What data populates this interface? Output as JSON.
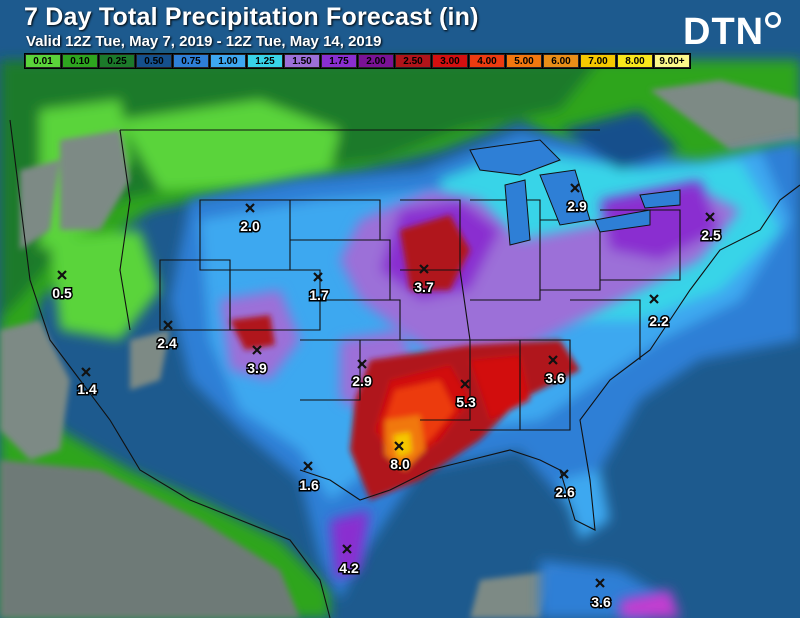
{
  "title": "7 Day Total Precipitation Forecast (in)",
  "subtitle": "Valid 12Z Tue, May 7, 2019 - 12Z Tue, May 14, 2019",
  "brand": "DTN",
  "legend": [
    {
      "label": "0.01",
      "color": "#5ad43a"
    },
    {
      "label": "0.10",
      "color": "#2ea51f"
    },
    {
      "label": "0.25",
      "color": "#1c7a2a"
    },
    {
      "label": "0.50",
      "color": "#15508c"
    },
    {
      "label": "0.75",
      "color": "#2e7fd6"
    },
    {
      "label": "1.00",
      "color": "#3ea8f0"
    },
    {
      "label": "1.25",
      "color": "#38d4e8"
    },
    {
      "label": "1.50",
      "color": "#9c6fd8"
    },
    {
      "label": "1.75",
      "color": "#8a2fd0"
    },
    {
      "label": "2.00",
      "color": "#7a1296"
    },
    {
      "label": "2.50",
      "color": "#b0141a"
    },
    {
      "label": "3.00",
      "color": "#d21010"
    },
    {
      "label": "4.00",
      "color": "#ec3b10"
    },
    {
      "label": "5.00",
      "color": "#f1780f"
    },
    {
      "label": "6.00",
      "color": "#e88e18"
    },
    {
      "label": "7.00",
      "color": "#f5c800"
    },
    {
      "label": "8.00",
      "color": "#f8e71c"
    },
    {
      "label": "9.00+",
      "color": "#fbf88a"
    }
  ],
  "callouts": [
    {
      "value": "2.0"
    },
    {
      "value": "2.9"
    },
    {
      "value": "2.5"
    },
    {
      "value": "0.5"
    },
    {
      "value": "1.7"
    },
    {
      "value": "3.7"
    },
    {
      "value": "2.2"
    },
    {
      "value": "2.4"
    },
    {
      "value": "1.4"
    },
    {
      "value": "3.9"
    },
    {
      "value": "2.9"
    },
    {
      "value": "3.6"
    },
    {
      "value": "5.3"
    },
    {
      "value": "8.0"
    },
    {
      "value": "1.6"
    },
    {
      "value": "2.6"
    },
    {
      "value": "4.2"
    },
    {
      "value": "3.6"
    }
  ]
}
